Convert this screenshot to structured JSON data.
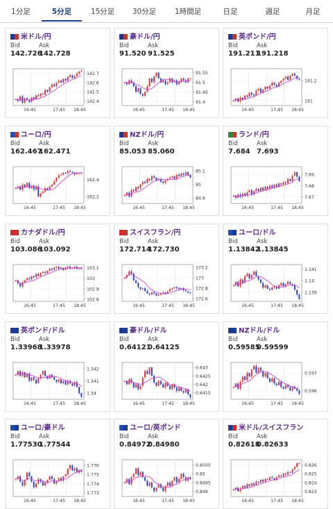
{
  "tabs": [
    {
      "label": "1分足"
    },
    {
      "label": "5分足"
    },
    {
      "label": "15分足"
    },
    {
      "label": "30分足"
    },
    {
      "label": "1時間足"
    },
    {
      "label": "日足"
    },
    {
      "label": "週足"
    },
    {
      "label": "月足"
    }
  ],
  "active_tab": "5分足",
  "bid_label": "Bid",
  "ask_label": "Ask",
  "colors": {
    "up": "#e53030",
    "down": "#2840c8",
    "ma": "#d040d8",
    "title": "#5a2a8e",
    "tab_active": "#1a3f8f"
  },
  "pairs": [
    {
      "name": "米ドル/円",
      "bid": "142.726",
      "ask": "142.728",
      "flags": [
        "#1f3a93",
        "#c0392b"
      ],
      "icon": "us-jp-flag-icon"
    },
    {
      "name": "豪ドル/円",
      "bid": "91.520",
      "ask": "91.525",
      "flags": [
        "#1f3a93",
        "#c0392b"
      ],
      "icon": "au-jp-flag-icon"
    },
    {
      "name": "英ポンド/円",
      "bid": "191.211",
      "ask": "191.218",
      "flags": [
        "#1f3a93",
        "#c0392b"
      ],
      "icon": "gb-jp-flag-icon"
    },
    {
      "name": "ユーロ/円",
      "bid": "162.467",
      "ask": "162.471",
      "flags": [
        "#1f4fb0",
        "#c0392b"
      ],
      "icon": "eu-jp-flag-icon"
    },
    {
      "name": "NZドル/円",
      "bid": "85.053",
      "ask": "85.060",
      "flags": [
        "#1f3a93",
        "#c0392b"
      ],
      "icon": "nz-jp-flag-icon"
    },
    {
      "name": "ランド/円",
      "bid": "7.684",
      "ask": "7.693",
      "flags": [
        "#2a8a3a",
        "#c0392b"
      ],
      "icon": "za-jp-flag-icon"
    },
    {
      "name": "カナダドル/円",
      "bid": "103.086",
      "ask": "103.092",
      "flags": [
        "#d42a2a",
        "#c0392b"
      ],
      "icon": "ca-jp-flag-icon"
    },
    {
      "name": "スイスフラン/円",
      "bid": "172.714",
      "ask": "172.730",
      "flags": [
        "#d42a2a",
        "#c0392b"
      ],
      "icon": "ch-jp-flag-icon"
    },
    {
      "name": "ユーロ/ドル",
      "bid": "1.13842",
      "ask": "1.13845",
      "flags": [
        "#1f4fb0",
        "#1f3a93"
      ],
      "icon": "eu-us-flag-icon"
    },
    {
      "name": "英ポンド/ドル",
      "bid": "1.33968",
      "ask": "1.33978",
      "flags": [
        "#1f3a93",
        "#1f3a93"
      ],
      "icon": "gb-us-flag-icon"
    },
    {
      "name": "豪ドル/ドル",
      "bid": "0.64121",
      "ask": "0.64125",
      "flags": [
        "#1f3a93",
        "#1f3a93"
      ],
      "icon": "au-us-flag-icon"
    },
    {
      "name": "NZドル/ドル",
      "bid": "0.59585",
      "ask": "0.59599",
      "flags": [
        "#1f3a93",
        "#1f3a93"
      ],
      "icon": "nz-us-flag-icon"
    },
    {
      "name": "ユーロ/豪ドル",
      "bid": "1.77530",
      "ask": "1.77544",
      "flags": [
        "#1f4fb0",
        "#1f3a93"
      ],
      "icon": "eu-au-flag-icon"
    },
    {
      "name": "ユーロ/英ポンド",
      "bid": "0.84972",
      "ask": "0.84980",
      "flags": [
        "#1f4fb0",
        "#1f3a93"
      ],
      "icon": "eu-gb-flag-icon"
    },
    {
      "name": "米ドル/スイスフラン",
      "bid": "0.82618",
      "ask": "0.82633",
      "flags": [
        "#1f3a93",
        "#d42a2a"
      ],
      "icon": "us-ch-flag-icon"
    }
  ],
  "chart_data": [
    {
      "type": "candlestick",
      "xticks": [
        "16:45",
        "17:45",
        "18:45"
      ],
      "yticks": [
        "142.7",
        "142.6",
        "142.5",
        "142.4"
      ],
      "ylim": [
        142.35,
        142.75
      ],
      "closes": [
        142.42,
        142.4,
        142.45,
        142.38,
        142.43,
        142.41,
        142.39,
        142.44,
        142.42,
        142.46,
        142.45,
        142.48,
        142.47,
        142.52,
        142.5,
        142.55,
        142.58,
        142.56,
        142.6,
        142.62,
        142.6,
        142.64,
        142.62,
        142.66,
        142.68,
        142.65,
        142.67,
        142.7,
        142.72,
        142.73
      ]
    },
    {
      "type": "candlestick",
      "xticks": [
        "16:45",
        "17:45",
        "18:45"
      ],
      "yticks": [
        "91.55",
        "91.5",
        "91.45",
        "91.4"
      ],
      "ylim": [
        91.38,
        91.57
      ],
      "closes": [
        91.5,
        91.49,
        91.51,
        91.5,
        91.48,
        91.45,
        91.47,
        91.44,
        91.43,
        91.45,
        91.48,
        91.52,
        91.5,
        91.53,
        91.55,
        91.52,
        91.5,
        91.51,
        91.49,
        91.5,
        91.52,
        91.5,
        91.51,
        91.49,
        91.5,
        91.52,
        91.51,
        91.5,
        91.52,
        91.52
      ]
    },
    {
      "type": "candlestick",
      "xticks": [
        "16:45",
        "17:45",
        "18:45"
      ],
      "yticks": [
        "191.2",
        "191"
      ],
      "ylim": [
        190.95,
        191.32
      ],
      "closes": [
        191.0,
        191.02,
        190.99,
        191.03,
        191.01,
        191.05,
        191.04,
        191.08,
        191.06,
        191.05,
        191.1,
        191.12,
        191.08,
        191.11,
        191.14,
        191.12,
        191.15,
        191.18,
        191.16,
        191.14,
        191.18,
        191.2,
        191.22,
        191.24,
        191.21,
        191.25,
        191.27,
        191.25,
        191.22,
        191.21
      ]
    },
    {
      "type": "candlestick",
      "xticks": [
        "16:45",
        "17:45",
        "18:45"
      ],
      "yticks": [
        "162.4",
        "162.2"
      ],
      "ylim": [
        162.12,
        162.55
      ],
      "closes": [
        162.3,
        162.32,
        162.28,
        162.34,
        162.31,
        162.36,
        162.3,
        162.33,
        162.28,
        162.32,
        162.2,
        162.24,
        162.26,
        162.3,
        162.28,
        162.32,
        162.34,
        162.38,
        162.42,
        162.45,
        162.46,
        162.48,
        162.47,
        162.5,
        162.49,
        162.48,
        162.46,
        162.47,
        162.48,
        162.47
      ]
    },
    {
      "type": "candlestick",
      "xticks": [
        "16:45",
        "17:45",
        "18:45"
      ],
      "yticks": [
        "85.1",
        "85",
        "84.9"
      ],
      "ylim": [
        84.86,
        85.13
      ],
      "closes": [
        84.92,
        84.94,
        84.91,
        84.96,
        84.95,
        84.98,
        84.97,
        85.0,
        85.02,
        85.01,
        85.04,
        85.03,
        85.06,
        85.05,
        85.03,
        85.04,
        85.02,
        85.01,
        85.03,
        85.04,
        85.05,
        85.06,
        85.04,
        85.07,
        85.06,
        85.08,
        85.07,
        85.09,
        85.07,
        85.05
      ]
    },
    {
      "type": "candlestick",
      "xticks": [
        "16:45",
        "17:45",
        "18:45"
      ],
      "yticks": [
        "7.69",
        "7.68",
        "7.67"
      ],
      "ylim": [
        7.664,
        7.697
      ],
      "closes": [
        7.671,
        7.669,
        7.672,
        7.67,
        7.673,
        7.671,
        7.674,
        7.676,
        7.672,
        7.675,
        7.677,
        7.675,
        7.678,
        7.676,
        7.679,
        7.677,
        7.68,
        7.678,
        7.681,
        7.679,
        7.682,
        7.681,
        7.683,
        7.682,
        7.686,
        7.684,
        7.689,
        7.692,
        7.688,
        7.684
      ]
    },
    {
      "type": "candlestick",
      "xticks": [
        "16:45",
        "17:45",
        "18:45"
      ],
      "yticks": [
        "103.1",
        "103",
        "102.9",
        "102.8"
      ],
      "ylim": [
        102.78,
        103.13
      ],
      "closes": [
        102.98,
        102.95,
        102.92,
        102.96,
        102.98,
        103.0,
        102.99,
        103.02,
        103.01,
        103.04,
        103.02,
        103.05,
        103.06,
        103.05,
        103.07,
        103.09,
        103.08,
        103.1,
        103.11,
        103.09,
        103.1,
        103.08,
        103.1,
        103.11,
        103.09,
        103.1,
        103.11,
        103.09,
        103.1,
        103.09
      ]
    },
    {
      "type": "candlestick",
      "xticks": [
        "16:45",
        "17:45",
        "18:45"
      ],
      "yticks": [
        "173.2",
        "173",
        "172.8",
        "172.6"
      ],
      "ylim": [
        172.55,
        173.25
      ],
      "closes": [
        173.0,
        173.05,
        173.12,
        173.08,
        172.95,
        172.9,
        172.82,
        172.78,
        172.8,
        172.75,
        172.7,
        172.68,
        172.72,
        172.7,
        172.66,
        172.68,
        172.7,
        172.72,
        172.7,
        172.74,
        172.78,
        172.8,
        172.82,
        172.8,
        172.78,
        172.8,
        172.76,
        172.74,
        172.72,
        172.71
      ]
    },
    {
      "type": "candlestick",
      "xticks": [
        "16:45",
        "17:45",
        "18:45"
      ],
      "yticks": [
        "1.141",
        "1.14",
        "1.139"
      ],
      "ylim": [
        1.1382,
        1.1414
      ],
      "closes": [
        1.1396,
        1.1399,
        1.1395,
        1.1401,
        1.1398,
        1.1404,
        1.1406,
        1.1402,
        1.1405,
        1.1408,
        1.1404,
        1.1401,
        1.1398,
        1.1394,
        1.1396,
        1.1393,
        1.1392,
        1.1394,
        1.1395,
        1.1393,
        1.1396,
        1.1398,
        1.1395,
        1.1397,
        1.1399,
        1.1397,
        1.1396,
        1.1392,
        1.1388,
        1.1384
      ]
    },
    {
      "type": "candlestick",
      "xticks": [
        "16:45",
        "17:45",
        "18:45"
      ],
      "yticks": [
        "1.342",
        "1.341",
        "1.34"
      ],
      "ylim": [
        1.3395,
        1.3425
      ],
      "closes": [
        1.3415,
        1.3418,
        1.3414,
        1.3417,
        1.3413,
        1.3416,
        1.341,
        1.3413,
        1.3411,
        1.3408,
        1.3412,
        1.3415,
        1.3418,
        1.3414,
        1.3412,
        1.3415,
        1.3413,
        1.3411,
        1.3409,
        1.3411,
        1.3408,
        1.341,
        1.3407,
        1.341,
        1.3408,
        1.3406,
        1.3409,
        1.3405,
        1.34,
        1.3397
      ]
    },
    {
      "type": "candlestick",
      "xticks": [
        "16:45",
        "17:45",
        "18:45"
      ],
      "yticks": [
        "0.643",
        "0.6425",
        "0.642",
        "0.6415"
      ],
      "ylim": [
        0.6411,
        0.6433
      ],
      "closes": [
        0.6422,
        0.642,
        0.6423,
        0.6421,
        0.6418,
        0.642,
        0.6417,
        0.6419,
        0.6424,
        0.6428,
        0.6426,
        0.643,
        0.6425,
        0.6421,
        0.6419,
        0.6422,
        0.642,
        0.6418,
        0.6421,
        0.6419,
        0.6417,
        0.642,
        0.6418,
        0.6416,
        0.6418,
        0.6416,
        0.6415,
        0.6417,
        0.6414,
        0.6412
      ]
    },
    {
      "type": "candlestick",
      "xticks": [
        "16:45",
        "17:45",
        "18:45"
      ],
      "yticks": [
        "0.597",
        "0.596"
      ],
      "ylim": [
        0.5955,
        0.5976
      ],
      "closes": [
        0.5962,
        0.5964,
        0.5961,
        0.5965,
        0.5968,
        0.5966,
        0.597,
        0.5968,
        0.5972,
        0.5974,
        0.597,
        0.5973,
        0.5971,
        0.5968,
        0.597,
        0.5967,
        0.5965,
        0.5967,
        0.5964,
        0.5963,
        0.5965,
        0.5962,
        0.5961,
        0.5963,
        0.5962,
        0.596,
        0.5962,
        0.5961,
        0.596,
        0.5958
      ]
    },
    {
      "type": "candlestick",
      "xticks": [
        "16:45",
        "17:45",
        "18:45"
      ],
      "yticks": [
        "1.776",
        "1.775",
        "1.774",
        "1.773"
      ],
      "ylim": [
        1.7726,
        1.7766
      ],
      "closes": [
        1.7745,
        1.7748,
        1.7742,
        1.7738,
        1.7744,
        1.7752,
        1.7748,
        1.7742,
        1.7736,
        1.774,
        1.7745,
        1.7742,
        1.7738,
        1.7741,
        1.7744,
        1.7748,
        1.7745,
        1.774,
        1.7743,
        1.7746,
        1.7743,
        1.7748,
        1.775,
        1.7756,
        1.776,
        1.7754,
        1.7757,
        1.7752,
        1.7755,
        1.7753
      ]
    },
    {
      "type": "candlestick",
      "xticks": [
        "16:45",
        "17:45",
        "18:45"
      ],
      "yticks": [
        "0.8505",
        "0.85",
        "0.8495",
        "0.849"
      ],
      "ylim": [
        0.8487,
        0.8508
      ],
      "closes": [
        0.8495,
        0.8497,
        0.8494,
        0.8498,
        0.85,
        0.8503,
        0.8499,
        0.8501,
        0.8498,
        0.8496,
        0.8493,
        0.8495,
        0.8492,
        0.849,
        0.8492,
        0.8494,
        0.8492,
        0.849,
        0.8493,
        0.8495,
        0.8493,
        0.8496,
        0.8498,
        0.8495,
        0.8497,
        0.85,
        0.8498,
        0.8496,
        0.8498,
        0.8497
      ]
    },
    {
      "type": "candlestick",
      "xticks": [
        "16:45",
        "17:45",
        "18:45"
      ],
      "yticks": [
        "0.826",
        "0.825",
        "0.824",
        "0.823"
      ],
      "ylim": [
        0.8224,
        0.8266
      ],
      "closes": [
        0.8232,
        0.8234,
        0.823,
        0.8233,
        0.8236,
        0.8234,
        0.8238,
        0.8236,
        0.8239,
        0.8237,
        0.8241,
        0.824,
        0.8243,
        0.8241,
        0.8244,
        0.8243,
        0.8246,
        0.8245,
        0.8243,
        0.8246,
        0.8248,
        0.8247,
        0.825,
        0.8249,
        0.8252,
        0.8251,
        0.8255,
        0.8258,
        0.8262,
        0.8262
      ]
    }
  ]
}
